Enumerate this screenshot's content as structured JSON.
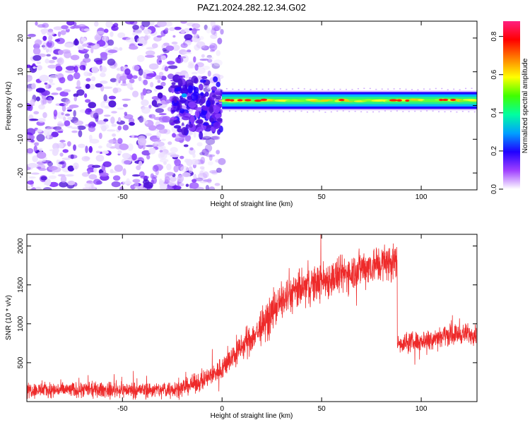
{
  "figure_title": "PAZ1.2024.282.12.34.G02",
  "chart_data": [
    {
      "type": "heatmap",
      "xlabel": "Height of straight line (km)",
      "ylabel": "Frequency (Hz)",
      "xlim": [
        -98,
        128
      ],
      "ylim": [
        -25,
        25
      ],
      "xticks": [
        -50,
        0,
        50,
        100
      ],
      "yticks": [
        -20,
        -10,
        0,
        10,
        20
      ],
      "xtick_labels": [
        "-50",
        "0",
        "50",
        "100"
      ],
      "ytick_labels": [
        "-20",
        "-10",
        "0",
        "10",
        "20"
      ],
      "colorbar": {
        "label": "Normalized spectral amplitude",
        "range": [
          0,
          0.88
        ],
        "ticks": [
          0,
          0.2,
          0.4,
          0.6,
          0.8
        ],
        "tick_labels": [
          "0.0",
          "0.2",
          "0.4",
          "0.6",
          "0.8"
        ],
        "colormap": [
          "#ffffff",
          "#a040ff",
          "#2000ff",
          "#00a0ff",
          "#00ffa0",
          "#40ff00",
          "#ffff00",
          "#ff8000",
          "#ff0000",
          "#ff2080"
        ]
      },
      "features": {
        "noise_region_x": [
          -98,
          0
        ],
        "transition_blob_x": [
          -25,
          0
        ],
        "signal_band_x": [
          0,
          128
        ],
        "signal_band_center_hz": 1.5,
        "signal_band_half_width_hz": 2.5
      },
      "grid": false
    },
    {
      "type": "line",
      "xlabel": "Height of straight line (km)",
      "ylabel": "SNR (10 * v/v)",
      "xlim": [
        -98,
        128
      ],
      "ylim": [
        0,
        2150
      ],
      "xticks": [
        -50,
        0,
        50,
        100
      ],
      "yticks": [
        500,
        1000,
        1500,
        2000
      ],
      "xtick_labels": [
        "-50",
        "0",
        "50",
        "100"
      ],
      "ytick_labels": [
        "500",
        "1000",
        "1500",
        "2000"
      ],
      "color": "#ee2a2a",
      "trend": {
        "x": [
          -98,
          -30,
          -20,
          -10,
          0,
          10,
          20,
          25,
          30,
          40,
          50,
          60,
          70,
          80,
          87,
          88,
          100,
          110,
          120,
          128
        ],
        "y": [
          150,
          150,
          180,
          260,
          430,
          700,
          950,
          1150,
          1300,
          1450,
          1550,
          1620,
          1720,
          1780,
          1800,
          750,
          780,
          850,
          870,
          870
        ]
      },
      "noise_amplitude": [
        120,
        120,
        130,
        150,
        180,
        220,
        260,
        280,
        280,
        300,
        300,
        300,
        300,
        300,
        300,
        150,
        160,
        160,
        160,
        160
      ],
      "grid": false
    }
  ]
}
